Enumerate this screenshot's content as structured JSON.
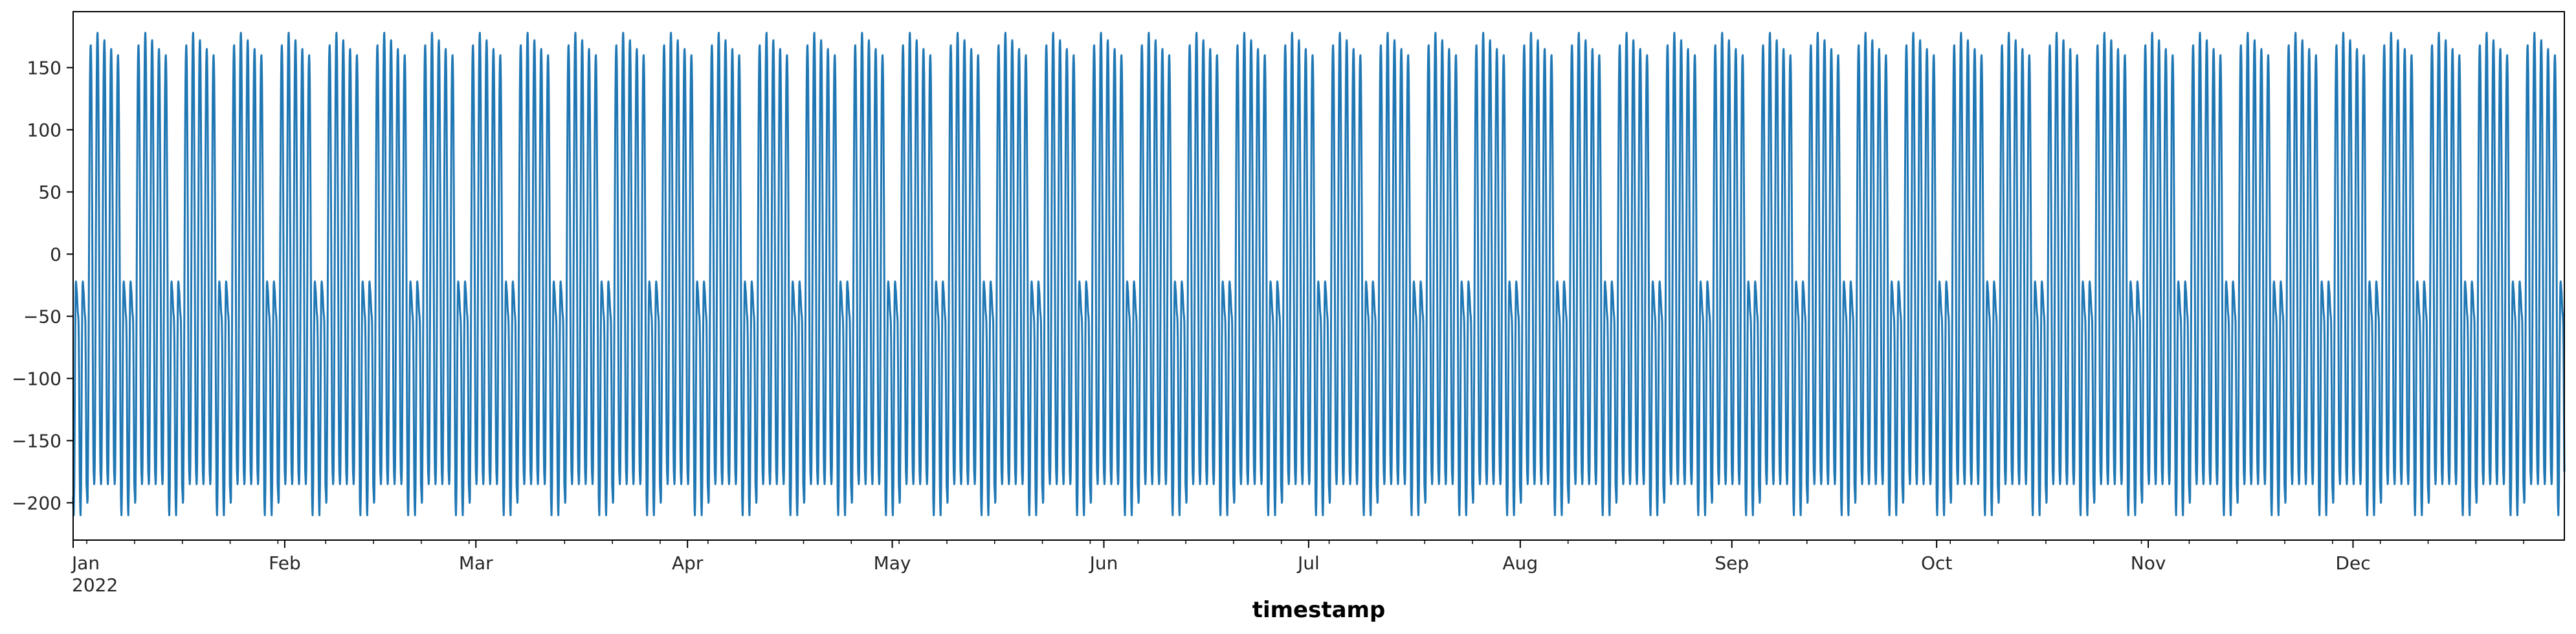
{
  "chart_data": {
    "type": "line",
    "title": "",
    "xlabel": "timestamp",
    "ylabel": "",
    "x_range": [
      "2022-01-01",
      "2022-12-31"
    ],
    "ylim": [
      -230,
      195
    ],
    "yticks": [
      -200,
      -150,
      -100,
      -50,
      0,
      50,
      100,
      150
    ],
    "ytick_labels": [
      "−200",
      "−150",
      "−100",
      "−50",
      "0",
      "50",
      "100",
      "150"
    ],
    "xticks": [
      {
        "date": "2022-01-01",
        "label": "Jan",
        "sublabel": "2022"
      },
      {
        "date": "2022-02-01",
        "label": "Feb"
      },
      {
        "date": "2022-03-01",
        "label": "Mar"
      },
      {
        "date": "2022-04-01",
        "label": "Apr"
      },
      {
        "date": "2022-05-01",
        "label": "May"
      },
      {
        "date": "2022-06-01",
        "label": "Jun"
      },
      {
        "date": "2022-07-01",
        "label": "Jul"
      },
      {
        "date": "2022-08-01",
        "label": "Aug"
      },
      {
        "date": "2022-09-01",
        "label": "Sep"
      },
      {
        "date": "2022-10-01",
        "label": "Oct"
      },
      {
        "date": "2022-11-01",
        "label": "Nov"
      },
      {
        "date": "2022-12-01",
        "label": "Dec"
      }
    ],
    "grid": false,
    "legend": "none",
    "series": [
      {
        "color": "#1f77b4",
        "frequency": "hourly",
        "weekly_pattern": {
          "weekday_daily_profile": [
            -175,
            -180,
            -185,
            -182,
            -170,
            -140,
            -95,
            -45,
            10,
            60,
            105,
            140,
            160,
            170,
            172,
            165,
            150,
            120,
            80,
            35,
            -20,
            -75,
            -125,
            -160
          ],
          "weekend_daily_profile": [
            -195,
            -205,
            -210,
            -200,
            -185,
            -150,
            -110,
            -70,
            -40,
            -25,
            -22,
            -24,
            -28,
            -30,
            -35,
            -40,
            -45,
            -48,
            -50,
            -55,
            -70,
            -100,
            -140,
            -175
          ],
          "weekday_peaks_by_day": [
            168,
            178,
            172,
            165,
            160
          ],
          "weekend_day_index": [
            5,
            6
          ]
        }
      }
    ]
  }
}
